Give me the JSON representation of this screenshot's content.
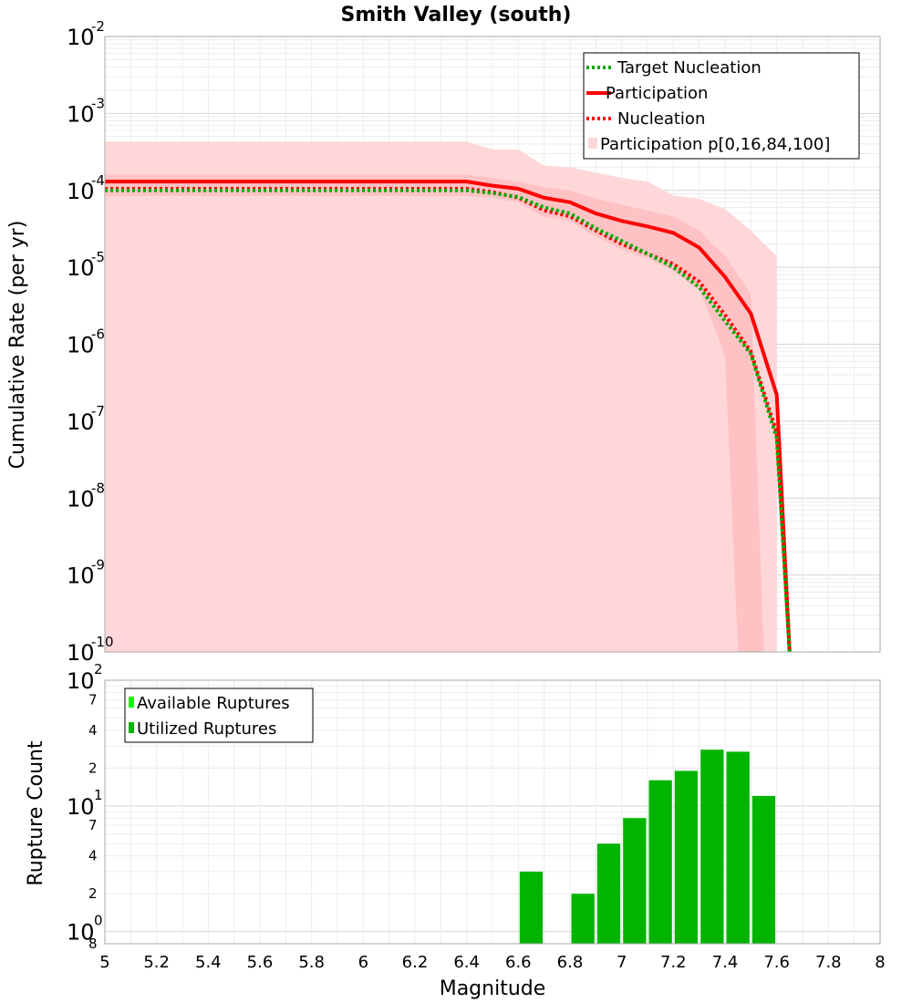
{
  "title": "Smith Valley (south)",
  "colors": {
    "target": "#00aa00",
    "participation": "#ff0000",
    "nucleation": "#ff0000",
    "band": "#ffd7d9",
    "band_inner": "#ffc2c4",
    "utilized_bar": "#00b400",
    "available_bar": "#00ff00"
  },
  "chart_data": [
    {
      "type": "line",
      "title": "Smith Valley (south)",
      "xlabel": "",
      "ylabel": "Cumulative Rate (per yr)",
      "xlim": [
        5,
        8
      ],
      "ylim": [
        1e-10,
        0.01
      ],
      "y_scale": "log",
      "grid": true,
      "legend_position": "top-right",
      "y_ticks": [
        {
          "base": "10",
          "exp": "-2"
        },
        {
          "base": "10",
          "exp": "-3"
        },
        {
          "base": "10",
          "exp": "-4"
        },
        {
          "base": "10",
          "exp": "-5"
        },
        {
          "base": "10",
          "exp": "-6"
        },
        {
          "base": "10",
          "exp": "-7"
        },
        {
          "base": "10",
          "exp": "-8"
        },
        {
          "base": "10",
          "exp": "-9"
        },
        {
          "base": "10",
          "exp": "-10"
        }
      ],
      "legend": [
        "Target Nucleation",
        "Participation",
        "Nucleation",
        "Participation p[0,16,84,100]"
      ],
      "series": [
        {
          "name": "Target Nucleation",
          "style": "dotted",
          "x": [
            5.0,
            6.4,
            6.5,
            6.6,
            6.7,
            6.8,
            6.9,
            7.0,
            7.1,
            7.2,
            7.3,
            7.4,
            7.5,
            7.6,
            7.65
          ],
          "y": [
            0.0001,
            0.0001,
            9.2e-05,
            8.2e-05,
            6e-05,
            5e-05,
            3.2e-05,
            2.2e-05,
            1.5e-05,
            1e-05,
            5.5e-06,
            2e-06,
            7.5e-07,
            6e-08,
            1e-10
          ]
        },
        {
          "name": "Participation",
          "style": "solid",
          "x": [
            5.0,
            6.4,
            6.5,
            6.6,
            6.7,
            6.8,
            6.9,
            7.0,
            7.1,
            7.2,
            7.3,
            7.4,
            7.5,
            7.6,
            7.65
          ],
          "y": [
            0.00013,
            0.00013,
            0.000115,
            0.000105,
            8e-05,
            7e-05,
            5e-05,
            4e-05,
            3.4e-05,
            2.8e-05,
            1.8e-05,
            7.5e-06,
            2.5e-06,
            2.2e-07,
            1e-10
          ]
        },
        {
          "name": "Nucleation",
          "style": "dotted",
          "x": [
            5.0,
            6.4,
            6.5,
            6.6,
            6.7,
            6.8,
            6.9,
            7.0,
            7.1,
            7.2,
            7.3,
            7.4,
            7.5,
            7.6,
            7.65
          ],
          "y": [
            0.000105,
            0.000105,
            9.5e-05,
            8e-05,
            5.5e-05,
            4.6e-05,
            3e-05,
            2e-05,
            1.5e-05,
            1.1e-05,
            6.5e-06,
            2.4e-06,
            8e-07,
            7e-08,
            1e-10
          ]
        }
      ],
      "bands": [
        {
          "name": "Participation p[0,16,84,100]",
          "kind": "outer",
          "x": [
            5.0,
            6.4,
            6.5,
            6.6,
            6.7,
            6.8,
            6.9,
            7.0,
            7.1,
            7.2,
            7.3,
            7.4,
            7.5,
            7.6
          ],
          "upper": [
            0.00043,
            0.00043,
            0.00034,
            0.00034,
            0.00021,
            0.0002,
            0.00017,
            0.000145,
            0.00013,
            8.6e-05,
            7.7e-05,
            5.7e-05,
            3e-05,
            1.4e-05
          ],
          "lower": [
            1e-10,
            1e-10,
            1e-10,
            1e-10,
            1e-10,
            1e-10,
            1e-10,
            1e-10,
            1e-10,
            1e-10,
            1e-10,
            1e-10,
            1e-10,
            1e-10
          ]
        },
        {
          "name": "Participation p[16,84]",
          "kind": "inner",
          "x": [
            5.0,
            6.4,
            6.5,
            6.6,
            6.7,
            6.8,
            6.9,
            7.0,
            7.1,
            7.2,
            7.3,
            7.35,
            7.4,
            7.45,
            7.5,
            7.55
          ],
          "upper": [
            0.00016,
            0.00016,
            0.000145,
            0.00013,
            0.00011,
            0.0001,
            7.8e-05,
            6.5e-05,
            5.5e-05,
            4.6e-05,
            3e-05,
            2e-05,
            1.4e-05,
            8e-06,
            4.5e-06,
            1e-10
          ],
          "lower": [
            8.5e-05,
            8.5e-05,
            8e-05,
            7e-05,
            4.5e-05,
            4e-05,
            2.5e-05,
            1.7e-05,
            1.3e-05,
            9e-06,
            5e-06,
            2e-06,
            7e-07,
            1e-10,
            1e-10,
            1e-10
          ]
        }
      ]
    },
    {
      "type": "bar",
      "title": "",
      "xlabel": "Magnitude",
      "ylabel": "Rupture Count",
      "xlim": [
        5,
        8
      ],
      "ylim": [
        0.8,
        100
      ],
      "y_scale": "log",
      "grid": true,
      "legend_position": "top-left",
      "legend": [
        "Available Ruptures",
        "Utilized Ruptures"
      ],
      "x_ticks": [
        "5",
        "5.2",
        "5.4",
        "5.6",
        "5.8",
        "6",
        "6.2",
        "6.4",
        "6.6",
        "6.8",
        "7",
        "7.2",
        "7.4",
        "7.6",
        "7.8",
        "8"
      ],
      "y_decade_ticks": [
        {
          "base": "10",
          "exp": "2"
        },
        {
          "base": "10",
          "exp": "1"
        },
        {
          "base": "10",
          "exp": "0"
        }
      ],
      "y_minor_ticks": [
        {
          "label": "7",
          "value": 70
        },
        {
          "label": "4",
          "value": 40
        },
        {
          "label": "2",
          "value": 20
        },
        {
          "label": "7",
          "value": 7
        },
        {
          "label": "4",
          "value": 4
        },
        {
          "label": "2",
          "value": 2
        },
        {
          "label": "8",
          "value": 0.8
        }
      ],
      "bin_width": 0.1,
      "bins": [
        6.65,
        6.85,
        6.95,
        7.05,
        7.15,
        7.25,
        7.35,
        7.45,
        7.55
      ],
      "series": [
        {
          "name": "Available Ruptures",
          "values": [
            3,
            2,
            5,
            8,
            16,
            19,
            28,
            27,
            12
          ]
        },
        {
          "name": "Utilized Ruptures",
          "values": [
            3,
            2,
            5,
            8,
            16,
            19,
            28,
            27,
            12
          ]
        }
      ]
    }
  ]
}
